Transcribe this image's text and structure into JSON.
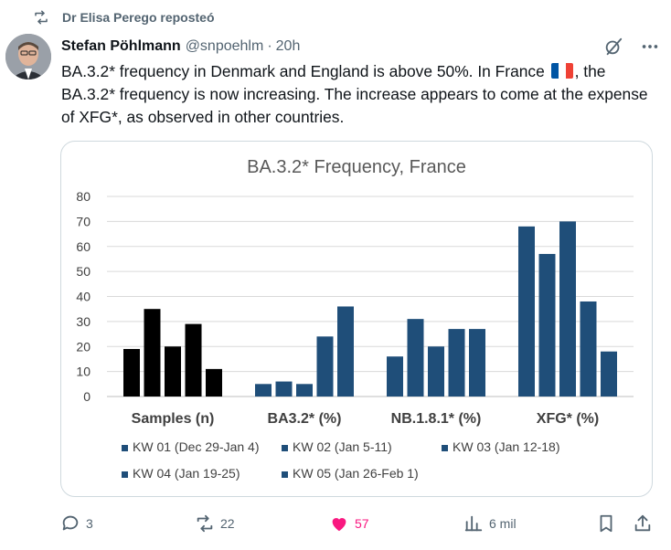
{
  "repost": {
    "label": "Dr Elisa Perego reposteó",
    "icon": "repost-icon"
  },
  "tweet": {
    "author": "Stefan Pöhlmann",
    "handle": "@snpoehlm",
    "separator": "·",
    "time": "20h",
    "text_part1": "BA.3.2* frequency in Denmark and England is above 50%. In France ",
    "text_part2": ", the BA.3.2* frequency is now increasing. The increase appears to come at the expense of XFG*, as observed in other countries.",
    "flag_colors": [
      "#0055a4",
      "#ffffff",
      "#ef4135"
    ]
  },
  "actions": {
    "replies": "3",
    "reposts": "22",
    "likes": "57",
    "views": "6 mil",
    "like_color": "#f91880"
  },
  "chart_data": {
    "type": "bar",
    "title": "BA.3.2* Frequency, France",
    "categories": [
      "Samples (n)",
      "BA3.2* (%)",
      "NB.1.8.1* (%)",
      "XFG* (%)"
    ],
    "series": [
      {
        "name": "KW 01 (Dec 29-Jan 4)",
        "values": [
          19,
          5,
          16,
          68
        ]
      },
      {
        "name": "KW 02 (Jan 5-11)",
        "values": [
          35,
          6,
          31,
          57
        ]
      },
      {
        "name": "KW 03 (Jan 12-18)",
        "values": [
          20,
          5,
          20,
          70
        ]
      },
      {
        "name": "KW 04 (Jan 19-25)",
        "values": [
          29,
          24,
          27,
          38
        ]
      },
      {
        "name": "KW 05 (Jan 26-Feb 1)",
        "values": [
          11,
          36,
          27,
          18
        ]
      }
    ],
    "ylim": [
      0,
      80
    ],
    "yticks": [
      "0",
      "10",
      "20",
      "30",
      "40",
      "50",
      "60",
      "70",
      "80"
    ],
    "grid": true,
    "legend_position": "bottom",
    "colors": {
      "samples": "#000000",
      "series": "#1f4e79"
    }
  }
}
